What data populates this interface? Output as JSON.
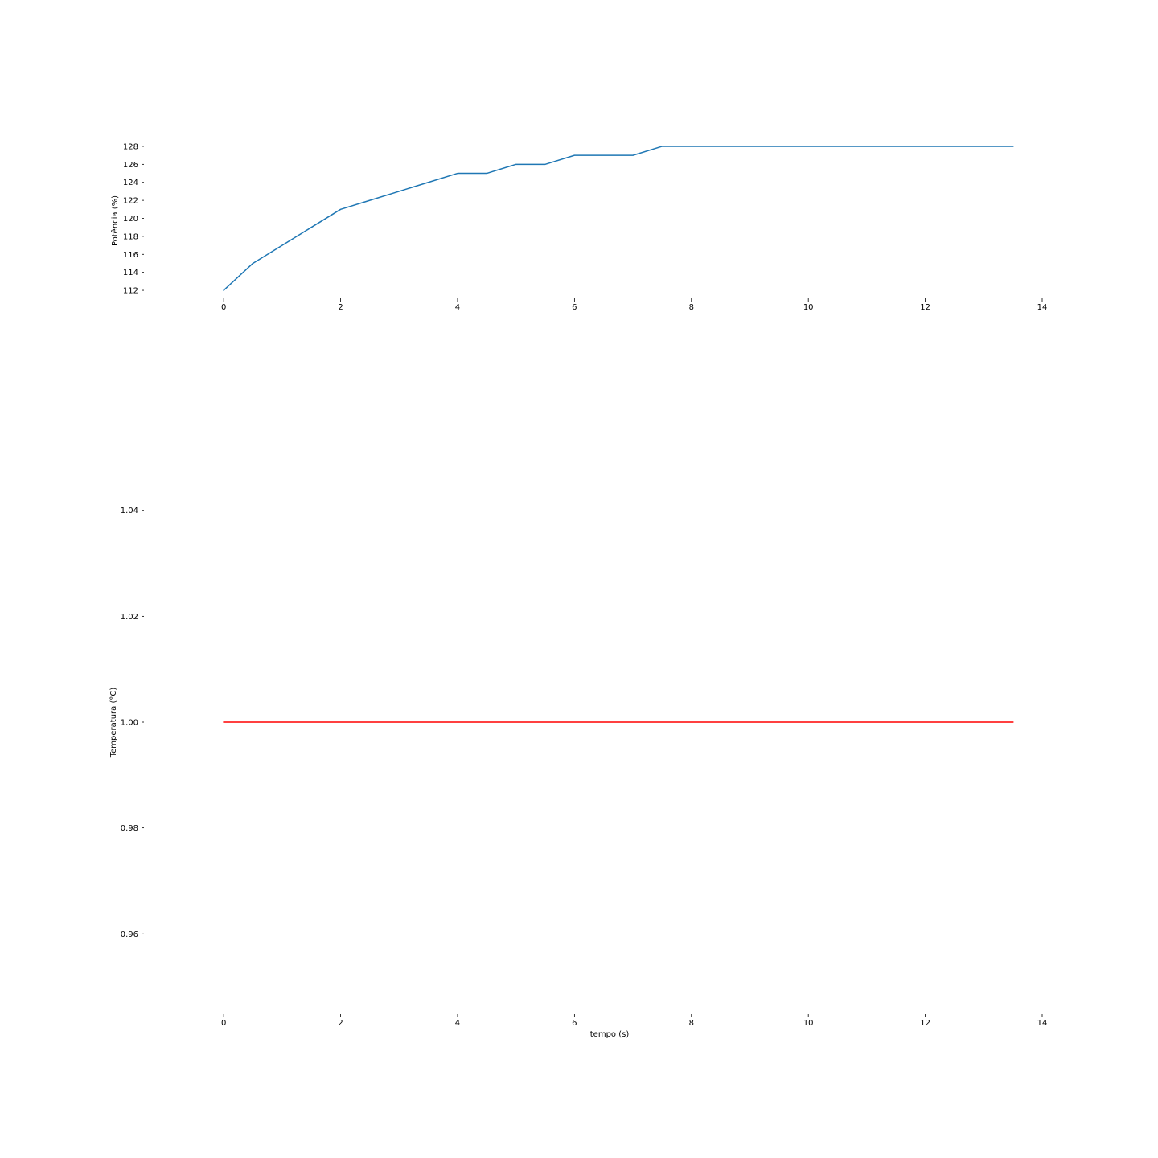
{
  "chart_data": [
    {
      "type": "line",
      "ylabel": "Potência (%)",
      "xlabel": "",
      "xlim": [
        -1.35,
        14.0
      ],
      "ylim": [
        111.2,
        128.8
      ],
      "xticks": [
        0,
        2,
        4,
        6,
        8,
        10,
        12,
        14
      ],
      "yticks": [
        112,
        114,
        116,
        118,
        120,
        122,
        124,
        126,
        128
      ],
      "grid": false,
      "series": [
        {
          "color": "#1f77b4",
          "x": [
            0,
            0.5,
            1.0,
            1.5,
            2.0,
            2.5,
            3.0,
            3.5,
            4.0,
            4.5,
            5.0,
            5.5,
            6.0,
            6.5,
            7.0,
            7.5,
            8.0,
            8.5,
            9.0,
            9.5,
            10.0,
            10.5,
            11.0,
            11.5,
            12.0,
            12.5,
            13.0,
            13.5
          ],
          "y": [
            112,
            115,
            117,
            119,
            121,
            122,
            123,
            124,
            125,
            125,
            126,
            126,
            127,
            127,
            127,
            128,
            128,
            128,
            128,
            128,
            128,
            128,
            128,
            128,
            128,
            128,
            128,
            128
          ]
        }
      ]
    },
    {
      "type": "line",
      "ylabel": "Temperatura (°C)",
      "xlabel": "tempo (s)",
      "xlim": [
        -1.35,
        14.0
      ],
      "ylim": [
        0.945,
        1.055
      ],
      "xticks": [
        0,
        2,
        4,
        6,
        8,
        10,
        12,
        14
      ],
      "yticks": [
        0.96,
        0.98,
        1.0,
        1.02,
        1.04
      ],
      "ytick_format": "2dp",
      "grid": false,
      "series": [
        {
          "color": "#ff0000",
          "x": [
            0,
            13.5
          ],
          "y": [
            1.0,
            1.0
          ]
        }
      ]
    }
  ]
}
